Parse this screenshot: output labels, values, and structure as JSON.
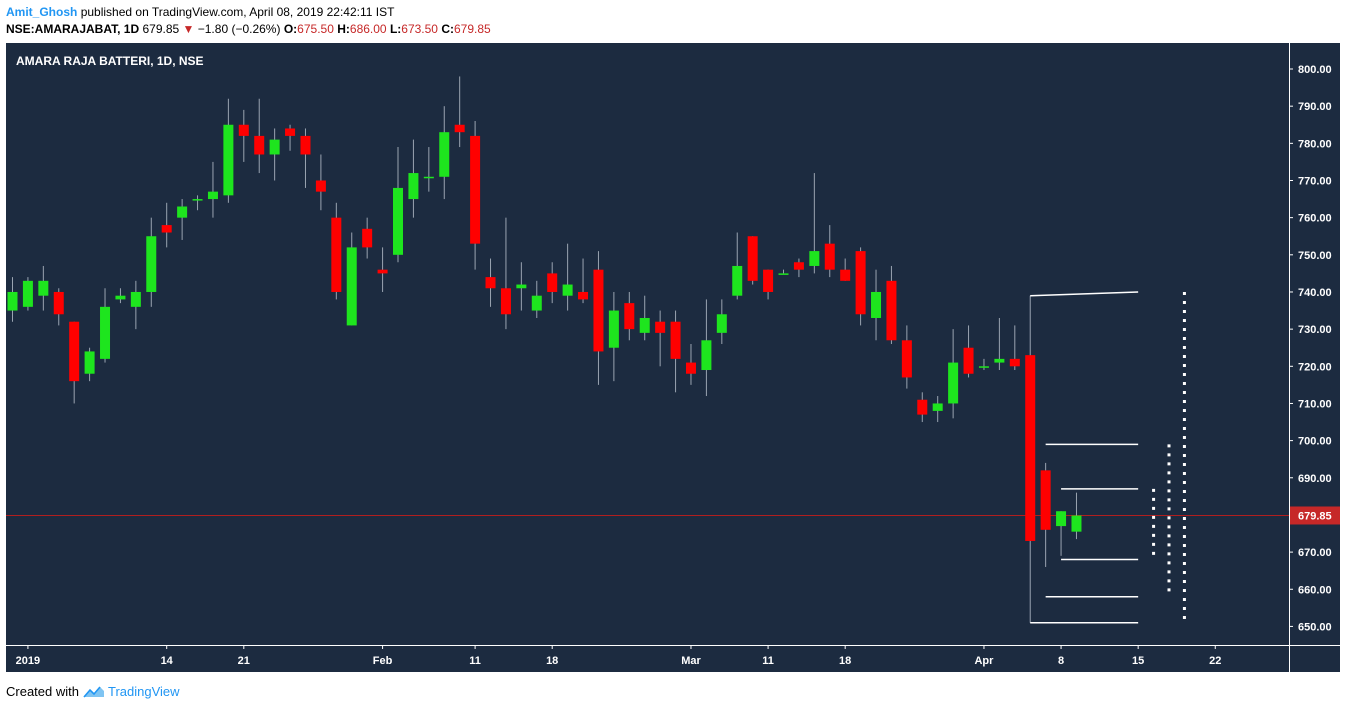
{
  "header": {
    "author": "Amit_Ghosh",
    "published_text": "published on TradingView.com, April 08, 2019 22:42:11 IST",
    "symbol_line": "NSE:AMARAJABAT, 1D",
    "last": "679.85",
    "change": "−1.80 (−0.26%)",
    "o_label": "O:",
    "o_value": "675.50",
    "h_label": "H:",
    "h_value": "686.00",
    "l_label": "L:",
    "l_value": "673.50",
    "c_label": "C:",
    "c_value": "679.85"
  },
  "footer": {
    "created_with": "Created with",
    "brand": "TradingView"
  },
  "colors": {
    "background": "#1c2b40",
    "up": "#1ee51e",
    "down": "#ff0000",
    "price_line": "#b11e1e",
    "text": "#ffffff",
    "wick": "#9aa4b1"
  },
  "chart_data": {
    "type": "candlestick",
    "title": "AMARA RAJA BATTERI, 1D, NSE",
    "ylim": [
      645,
      807
    ],
    "y_ticks": [
      "800.00",
      "790.00",
      "780.00",
      "770.00",
      "760.00",
      "750.00",
      "740.00",
      "730.00",
      "720.00",
      "710.00",
      "700.00",
      "690.00",
      "680.00",
      "670.00",
      "660.00",
      "650.00"
    ],
    "x_ticks": [
      {
        "label": "2019",
        "idx": 1
      },
      {
        "label": "14",
        "idx": 10
      },
      {
        "label": "21",
        "idx": 15
      },
      {
        "label": "Feb",
        "idx": 24
      },
      {
        "label": "11",
        "idx": 30
      },
      {
        "label": "18",
        "idx": 35
      },
      {
        "label": "Mar",
        "idx": 44
      },
      {
        "label": "11",
        "idx": 49
      },
      {
        "label": "18",
        "idx": 54
      },
      {
        "label": "Apr",
        "idx": 63
      },
      {
        "label": "8",
        "idx": 68
      },
      {
        "label": "15",
        "idx": 73
      },
      {
        "label": "22",
        "idx": 78
      }
    ],
    "current_price": "679.85",
    "current_value": 679.85,
    "candles": [
      [
        0,
        735,
        744,
        732,
        740
      ],
      [
        1,
        736,
        744,
        735,
        743
      ],
      [
        2,
        739,
        747,
        735,
        743
      ],
      [
        3,
        740,
        741,
        731,
        734
      ],
      [
        4,
        732,
        732,
        710,
        716
      ],
      [
        5,
        718,
        725,
        716,
        724
      ],
      [
        6,
        722,
        741,
        721,
        736
      ],
      [
        7,
        738,
        741,
        737,
        739
      ],
      [
        8,
        736,
        743,
        730,
        740
      ],
      [
        9,
        740,
        760,
        736,
        755
      ],
      [
        10,
        758,
        764,
        752,
        756
      ],
      [
        11,
        760,
        765,
        754,
        763
      ],
      [
        12,
        765,
        766,
        762,
        765
      ],
      [
        13,
        765,
        775,
        760,
        767
      ],
      [
        14,
        766,
        792,
        764,
        785
      ],
      [
        15,
        785,
        789,
        775,
        782
      ],
      [
        16,
        782,
        792,
        772,
        777
      ],
      [
        17,
        777,
        784,
        770,
        781
      ],
      [
        18,
        784,
        785,
        778,
        782
      ],
      [
        19,
        782,
        784,
        768,
        777
      ],
      [
        20,
        770,
        777,
        762,
        767
      ],
      [
        21,
        760,
        764,
        738,
        740
      ],
      [
        22,
        731,
        756,
        731,
        752
      ],
      [
        23,
        757,
        760,
        749,
        752
      ],
      [
        24,
        746,
        752,
        740,
        745
      ],
      [
        25,
        750,
        779,
        748,
        768
      ],
      [
        26,
        765,
        781,
        760,
        772
      ],
      [
        27,
        771,
        779,
        767,
        771
      ],
      [
        28,
        771,
        790,
        765,
        783
      ],
      [
        29,
        785,
        798,
        779,
        783
      ],
      [
        30,
        782,
        786,
        746,
        753
      ],
      [
        31,
        744,
        749,
        736,
        741
      ],
      [
        32,
        741,
        760,
        730,
        734
      ],
      [
        33,
        741,
        748,
        735,
        742
      ],
      [
        34,
        735,
        743,
        733,
        739
      ],
      [
        35,
        745,
        748,
        737,
        740
      ],
      [
        36,
        739,
        753,
        735,
        742
      ],
      [
        37,
        740,
        749,
        737,
        738
      ],
      [
        38,
        746,
        751,
        715,
        724
      ],
      [
        39,
        725,
        740,
        716,
        735
      ],
      [
        40,
        737,
        740,
        727,
        730
      ],
      [
        41,
        729,
        739,
        727,
        733
      ],
      [
        42,
        732,
        735,
        720,
        729
      ],
      [
        43,
        732,
        735,
        713,
        722
      ],
      [
        44,
        721,
        726,
        715,
        718
      ],
      [
        45,
        719,
        738,
        712,
        727
      ],
      [
        46,
        729,
        738,
        726,
        734
      ],
      [
        47,
        739,
        756,
        738,
        747
      ],
      [
        48,
        755,
        755,
        742,
        743
      ],
      [
        49,
        746,
        746,
        738,
        740
      ],
      [
        50,
        745,
        746,
        745,
        745
      ],
      [
        51,
        748,
        749,
        744,
        746
      ],
      [
        52,
        747,
        772,
        745,
        751
      ],
      [
        53,
        753,
        758,
        744,
        746
      ],
      [
        54,
        746,
        749,
        743,
        743
      ],
      [
        55,
        751,
        752,
        731,
        734
      ],
      [
        56,
        733,
        746,
        727,
        740
      ],
      [
        57,
        743,
        747,
        726,
        727
      ],
      [
        58,
        727,
        731,
        714,
        717
      ],
      [
        59,
        711,
        713,
        705,
        707
      ],
      [
        60,
        708,
        712,
        705,
        710
      ],
      [
        61,
        710,
        730,
        706,
        721
      ],
      [
        62,
        725,
        731,
        717,
        718
      ],
      [
        63,
        720,
        722,
        719,
        720
      ],
      [
        64,
        721,
        733,
        719,
        722
      ],
      [
        65,
        722,
        731,
        719,
        720
      ],
      [
        66,
        723,
        739,
        651,
        673
      ],
      [
        67,
        692,
        694,
        666,
        676
      ],
      [
        68,
        677,
        681,
        669,
        681
      ],
      [
        69,
        675.5,
        686,
        673.5,
        679.85
      ]
    ],
    "annotations": {
      "solid_lines": [
        {
          "from_idx": 66,
          "from_value": 739,
          "to_idx": 73,
          "to_value": 740
        },
        {
          "from_idx": 66,
          "from_value": 651,
          "to_idx": 73,
          "to_value": 651
        },
        {
          "from_idx": 67,
          "from_value": 699,
          "to_idx": 73,
          "to_value": 699
        },
        {
          "from_idx": 67,
          "from_value": 658,
          "to_idx": 73,
          "to_value": 658
        },
        {
          "from_idx": 68,
          "from_value": 687,
          "to_idx": 73,
          "to_value": 687
        },
        {
          "from_idx": 68,
          "from_value": 668,
          "to_idx": 73,
          "to_value": 668
        }
      ],
      "dotted_lines": [
        {
          "idx": 74.0,
          "top": 687,
          "bottom": 668
        },
        {
          "idx": 75.0,
          "top": 699,
          "bottom": 659
        },
        {
          "idx": 76.0,
          "top": 740,
          "bottom": 651
        }
      ]
    }
  }
}
